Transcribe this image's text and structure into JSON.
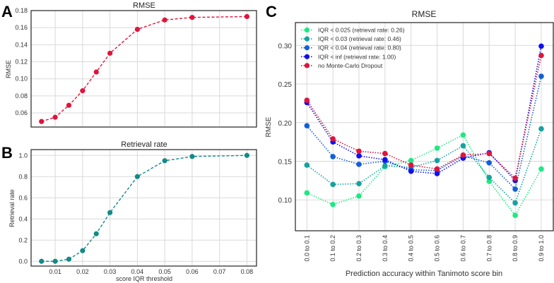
{
  "chart_data": [
    {
      "panel_label": "A",
      "type": "line",
      "title": "RMSE",
      "xlabel": "",
      "ylabel": "RMSE",
      "x": [
        0.005,
        0.01,
        0.015,
        0.02,
        0.025,
        0.03,
        0.04,
        0.05,
        0.06,
        0.08
      ],
      "series": [
        {
          "name": "RMSE",
          "color": "#e0143c",
          "values": [
            0.05,
            0.055,
            0.069,
            0.086,
            0.108,
            0.13,
            0.158,
            0.169,
            0.172,
            0.173
          ]
        }
      ],
      "xlim": [
        0.0012,
        0.0835
      ],
      "ylim": [
        0.0435,
        0.18
      ],
      "xgrid": [
        0.01,
        0.02,
        0.03,
        0.04,
        0.05,
        0.06,
        0.07,
        0.08
      ],
      "yticks": [
        "0.06",
        "0.08",
        "0.10",
        "0.12",
        "0.14",
        "0.16",
        "0.18"
      ],
      "grid": true
    },
    {
      "panel_label": "B",
      "type": "line",
      "title": "Retrieval rate",
      "xlabel": "score IQR threshold",
      "ylabel": "Retrieval rate",
      "x": [
        0.005,
        0.01,
        0.015,
        0.02,
        0.025,
        0.03,
        0.04,
        0.05,
        0.06,
        0.08
      ],
      "series": [
        {
          "name": "Retrieval rate",
          "color": "#138a87",
          "values": [
            0.0,
            0.0,
            0.02,
            0.1,
            0.26,
            0.46,
            0.8,
            0.95,
            0.99,
            1.0
          ]
        }
      ],
      "xlim": [
        0.0012,
        0.0835
      ],
      "ylim": [
        -0.045,
        1.055
      ],
      "xticks": [
        "0.01",
        "0.02",
        "0.03",
        "0.04",
        "0.05",
        "0.06",
        "0.07",
        "0.08"
      ],
      "yticks": [
        "0.0",
        "0.2",
        "0.4",
        "0.6",
        "0.8",
        "1.0"
      ],
      "grid": true
    },
    {
      "panel_label": "C",
      "type": "line",
      "title": "RMSE",
      "xlabel": "Prediction accuracy within Tanimoto score bin",
      "ylabel": "RMSE",
      "categories": [
        "0.0 to 0.1",
        "0.1 to 0.2",
        "0.2 to 0.3",
        "0.3 to 0.4",
        "0.4 to 0.5",
        "0.5 to 0.6",
        "0.6 to 0.7",
        "0.7 to 0.8",
        "0.8 to 0.9",
        "0.9 to 1.0"
      ],
      "series": [
        {
          "name": "IQR < 0.025 (retrieval rate: 0.26)",
          "color": "#1de982",
          "values": [
            0.109,
            0.094,
            0.105,
            0.143,
            0.151,
            0.167,
            0.184,
            0.124,
            0.08,
            0.14
          ]
        },
        {
          "name": "IQR < 0.03 (retrieval rate: 0.46)",
          "color": "#14a3a0",
          "values": [
            0.145,
            0.12,
            0.121,
            0.144,
            0.142,
            0.151,
            0.17,
            0.129,
            0.096,
            0.192
          ]
        },
        {
          "name": "IQR < 0.04 (retrieval rate: 0.80)",
          "color": "#1160d8",
          "values": [
            0.196,
            0.156,
            0.146,
            0.15,
            0.139,
            0.138,
            0.157,
            0.148,
            0.114,
            0.26
          ]
        },
        {
          "name": "IQR < inf (retrieval rate: 1.00)",
          "color": "#1010ee",
          "values": [
            0.226,
            0.175,
            0.157,
            0.152,
            0.137,
            0.134,
            0.154,
            0.161,
            0.125,
            0.299
          ]
        },
        {
          "name": "no Monte-Carlo Dropout",
          "color": "#e0143c",
          "values": [
            0.229,
            0.179,
            0.163,
            0.16,
            0.145,
            0.14,
            0.158,
            0.16,
            0.128,
            0.287
          ]
        }
      ],
      "ylim": [
        0.06,
        0.3295
      ],
      "yticks": [
        "0.10",
        "0.15",
        "0.20",
        "0.25",
        "0.30"
      ],
      "legend": "top-left",
      "grid": true
    }
  ]
}
